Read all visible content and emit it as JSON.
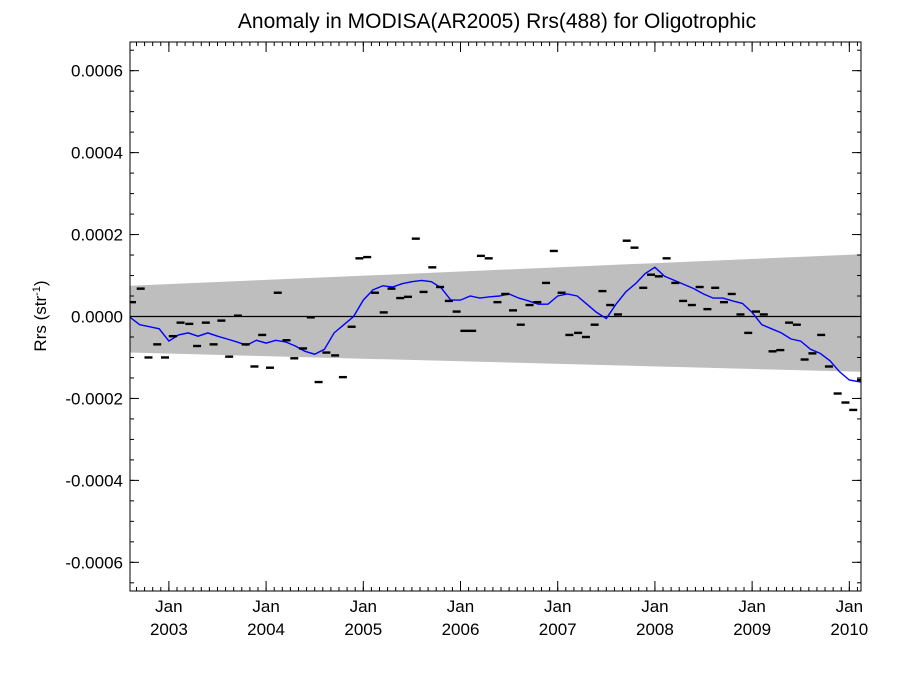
{
  "chart_data": {
    "type": "scatter",
    "title": "Anomaly in MODISA(AR2005) Rrs(488) for Oligotrophic",
    "ylabel": {
      "base": "Rrs (str",
      "sup": "-1",
      "close": ")"
    },
    "xlabel": "",
    "xlim": [
      2002.6,
      2010.12
    ],
    "ylim": [
      -0.00067,
      0.00067
    ],
    "grid": false,
    "y_ticks": [
      {
        "value": 0.0006,
        "label": "0.0006"
      },
      {
        "value": 0.0004,
        "label": "0.0004"
      },
      {
        "value": 0.0002,
        "label": "0.0002"
      },
      {
        "value": 0.0,
        "label": "0.0000"
      },
      {
        "value": -0.0002,
        "label": "-0.0002"
      },
      {
        "value": -0.0004,
        "label": "-0.0004"
      },
      {
        "value": -0.0006,
        "label": "-0.0006"
      }
    ],
    "x_ticks": [
      {
        "value": 2003.0,
        "month": "Jan",
        "year": "2003"
      },
      {
        "value": 2004.0,
        "month": "Jan",
        "year": "2004"
      },
      {
        "value": 2005.0,
        "month": "Jan",
        "year": "2005"
      },
      {
        "value": 2006.0,
        "month": "Jan",
        "year": "2006"
      },
      {
        "value": 2007.0,
        "month": "Jan",
        "year": "2007"
      },
      {
        "value": 2008.0,
        "month": "Jan",
        "year": "2008"
      },
      {
        "value": 2009.0,
        "month": "Jan",
        "year": "2009"
      },
      {
        "value": 2010.0,
        "month": "Jan",
        "year": "2010"
      }
    ],
    "series": [
      {
        "kind": "band",
        "color": "#bebebe",
        "x": [
          2002.6,
          2010.12
        ],
        "upper": [
          7.5e-05,
          0.000152
        ],
        "lower": [
          -8.8e-05,
          -0.000135
        ]
      },
      {
        "kind": "zero_line",
        "color": "#000000",
        "y": 0.0
      },
      {
        "kind": "markers",
        "color": "#000000",
        "x": [
          2002.62,
          2002.71,
          2002.79,
          2002.88,
          2002.96,
          2003.04,
          2003.12,
          2003.21,
          2003.29,
          2003.38,
          2003.46,
          2003.54,
          2003.62,
          2003.71,
          2003.79,
          2003.88,
          2003.96,
          2004.04,
          2004.12,
          2004.21,
          2004.29,
          2004.38,
          2004.46,
          2004.54,
          2004.62,
          2004.71,
          2004.79,
          2004.88,
          2004.96,
          2005.04,
          2005.12,
          2005.21,
          2005.29,
          2005.38,
          2005.46,
          2005.54,
          2005.62,
          2005.71,
          2005.79,
          2005.88,
          2005.96,
          2006.04,
          2006.12,
          2006.21,
          2006.29,
          2006.38,
          2006.46,
          2006.54,
          2006.62,
          2006.71,
          2006.79,
          2006.88,
          2006.96,
          2007.04,
          2007.12,
          2007.21,
          2007.29,
          2007.38,
          2007.46,
          2007.54,
          2007.62,
          2007.71,
          2007.79,
          2007.88,
          2007.96,
          2008.04,
          2008.12,
          2008.21,
          2008.29,
          2008.38,
          2008.46,
          2008.54,
          2008.62,
          2008.71,
          2008.79,
          2008.88,
          2008.96,
          2009.04,
          2009.12,
          2009.21,
          2009.29,
          2009.38,
          2009.46,
          2009.54,
          2009.62,
          2009.71,
          2009.79,
          2009.88,
          2009.96,
          2010.04,
          2010.12
        ],
        "y": [
          3.5e-05,
          6.8e-05,
          -0.0001,
          -6.8e-05,
          -0.0001,
          -4.8e-05,
          -1.5e-05,
          -1.8e-05,
          -7.2e-05,
          -1.5e-05,
          -6.8e-05,
          -1e-05,
          -9.8e-05,
          2e-06,
          -6.8e-05,
          -0.000122,
          -4.5e-05,
          -0.000125,
          5.8e-05,
          -5.8e-05,
          -0.000102,
          -7.8e-05,
          -2e-06,
          -0.00016,
          -8.8e-05,
          -9.5e-05,
          -0.000148,
          -2.5e-05,
          0.000142,
          0.000145,
          5.8e-05,
          1e-05,
          6.8e-05,
          4.5e-05,
          4.8e-05,
          0.00019,
          6e-05,
          0.00012,
          7.2e-05,
          3.8e-05,
          1.2e-05,
          -3.5e-05,
          -3.5e-05,
          0.000148,
          0.000142,
          3.5e-05,
          5.5e-05,
          1.5e-05,
          -2e-05,
          2.8e-05,
          3.5e-05,
          8.2e-05,
          0.00016,
          5.8e-05,
          -4.5e-05,
          -4e-05,
          -5e-05,
          -2e-05,
          6.2e-05,
          2.8e-05,
          5e-06,
          0.000185,
          0.000168,
          7e-05,
          0.000102,
          9.8e-05,
          0.000142,
          8.2e-05,
          3.8e-05,
          2.8e-05,
          7.2e-05,
          1.8e-05,
          7e-05,
          3.5e-05,
          5.5e-05,
          5e-06,
          -4e-05,
          1.2e-05,
          5e-06,
          -8.5e-05,
          -8.2e-05,
          -1.5e-05,
          -2e-05,
          -0.000105,
          -9e-05,
          -4.5e-05,
          -0.000122,
          -0.000188,
          -0.00021,
          -0.000228,
          -0.000155
        ]
      },
      {
        "kind": "line",
        "color": "#0000ff",
        "x": [
          2002.6,
          2002.7,
          2002.8,
          2002.9,
          2003.0,
          2003.1,
          2003.2,
          2003.3,
          2003.4,
          2003.5,
          2003.6,
          2003.7,
          2003.8,
          2003.9,
          2004.0,
          2004.1,
          2004.2,
          2004.3,
          2004.4,
          2004.5,
          2004.6,
          2004.7,
          2004.8,
          2004.9,
          2005.0,
          2005.1,
          2005.2,
          2005.3,
          2005.4,
          2005.5,
          2005.6,
          2005.7,
          2005.8,
          2005.9,
          2006.0,
          2006.1,
          2006.2,
          2006.3,
          2006.4,
          2006.5,
          2006.6,
          2006.7,
          2006.8,
          2006.9,
          2007.0,
          2007.1,
          2007.2,
          2007.3,
          2007.4,
          2007.5,
          2007.6,
          2007.7,
          2007.8,
          2007.9,
          2008.0,
          2008.1,
          2008.2,
          2008.3,
          2008.4,
          2008.5,
          2008.6,
          2008.7,
          2008.8,
          2008.9,
          2009.0,
          2009.1,
          2009.2,
          2009.3,
          2009.4,
          2009.5,
          2009.6,
          2009.7,
          2009.8,
          2009.9,
          2010.0,
          2010.12
        ],
        "y": [
          -2e-06,
          -2e-05,
          -2.5e-05,
          -3e-05,
          -6e-05,
          -4.5e-05,
          -4e-05,
          -4.8e-05,
          -4e-05,
          -4.8e-05,
          -5.5e-05,
          -6.2e-05,
          -7e-05,
          -5.8e-05,
          -6.5e-05,
          -5.8e-05,
          -6.2e-05,
          -7.2e-05,
          -8.5e-05,
          -9.2e-05,
          -8e-05,
          -4e-05,
          -2e-05,
          0.0,
          4e-05,
          6.5e-05,
          7.5e-05,
          7.2e-05,
          8e-05,
          8.5e-05,
          8.8e-05,
          8.5e-05,
          7e-05,
          4e-05,
          4e-05,
          5e-05,
          4.5e-05,
          4.8e-05,
          5e-05,
          5.5e-05,
          4.5e-05,
          3.8e-05,
          3e-05,
          3e-05,
          5e-05,
          5.5e-05,
          5e-05,
          3e-05,
          1e-05,
          -5e-06,
          3e-05,
          6e-05,
          8e-05,
          0.000105,
          0.00012,
          9.8e-05,
          8.8e-05,
          7.8e-05,
          6.8e-05,
          5.5e-05,
          4.5e-05,
          4.5e-05,
          3.8e-05,
          3.2e-05,
          1e-05,
          -2e-05,
          -3e-05,
          -4e-05,
          -5.5e-05,
          -6e-05,
          -8e-05,
          -9e-05,
          -0.000108,
          -0.000135,
          -0.000155,
          -0.00016
        ]
      }
    ]
  }
}
